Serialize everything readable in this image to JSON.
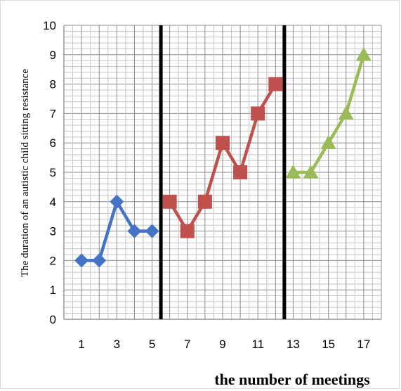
{
  "chart_data": {
    "type": "line",
    "title": "",
    "xlabel": "the number of meetings",
    "ylabel": "The duration of an autistic child sitting resistance",
    "xlim": [
      0,
      18
    ],
    "ylim": [
      0,
      10
    ],
    "x_ticks": [
      "1",
      "3",
      "5",
      "7",
      "9",
      "11",
      "13",
      "15",
      "17"
    ],
    "y_ticks": [
      "0",
      "1",
      "2",
      "3",
      "4",
      "5",
      "6",
      "7",
      "8",
      "9",
      "10"
    ],
    "grid": true,
    "legend": "none",
    "phase_dividers": [
      5.5,
      12.5
    ],
    "series": [
      {
        "x": [
          1,
          2,
          3,
          4,
          5
        ],
        "values": [
          2,
          2,
          4,
          3,
          3
        ],
        "color": "#4472C4",
        "marker": "diamond"
      },
      {
        "x": [
          6,
          7,
          8,
          9,
          10,
          11,
          12
        ],
        "values": [
          4,
          3,
          4,
          6,
          5,
          7,
          8
        ],
        "color": "#C0504D",
        "marker": "square"
      },
      {
        "x": [
          13,
          14,
          15,
          16,
          17
        ],
        "values": [
          5,
          5,
          6,
          7,
          9
        ],
        "color": "#9BBB59",
        "marker": "triangle"
      }
    ]
  }
}
